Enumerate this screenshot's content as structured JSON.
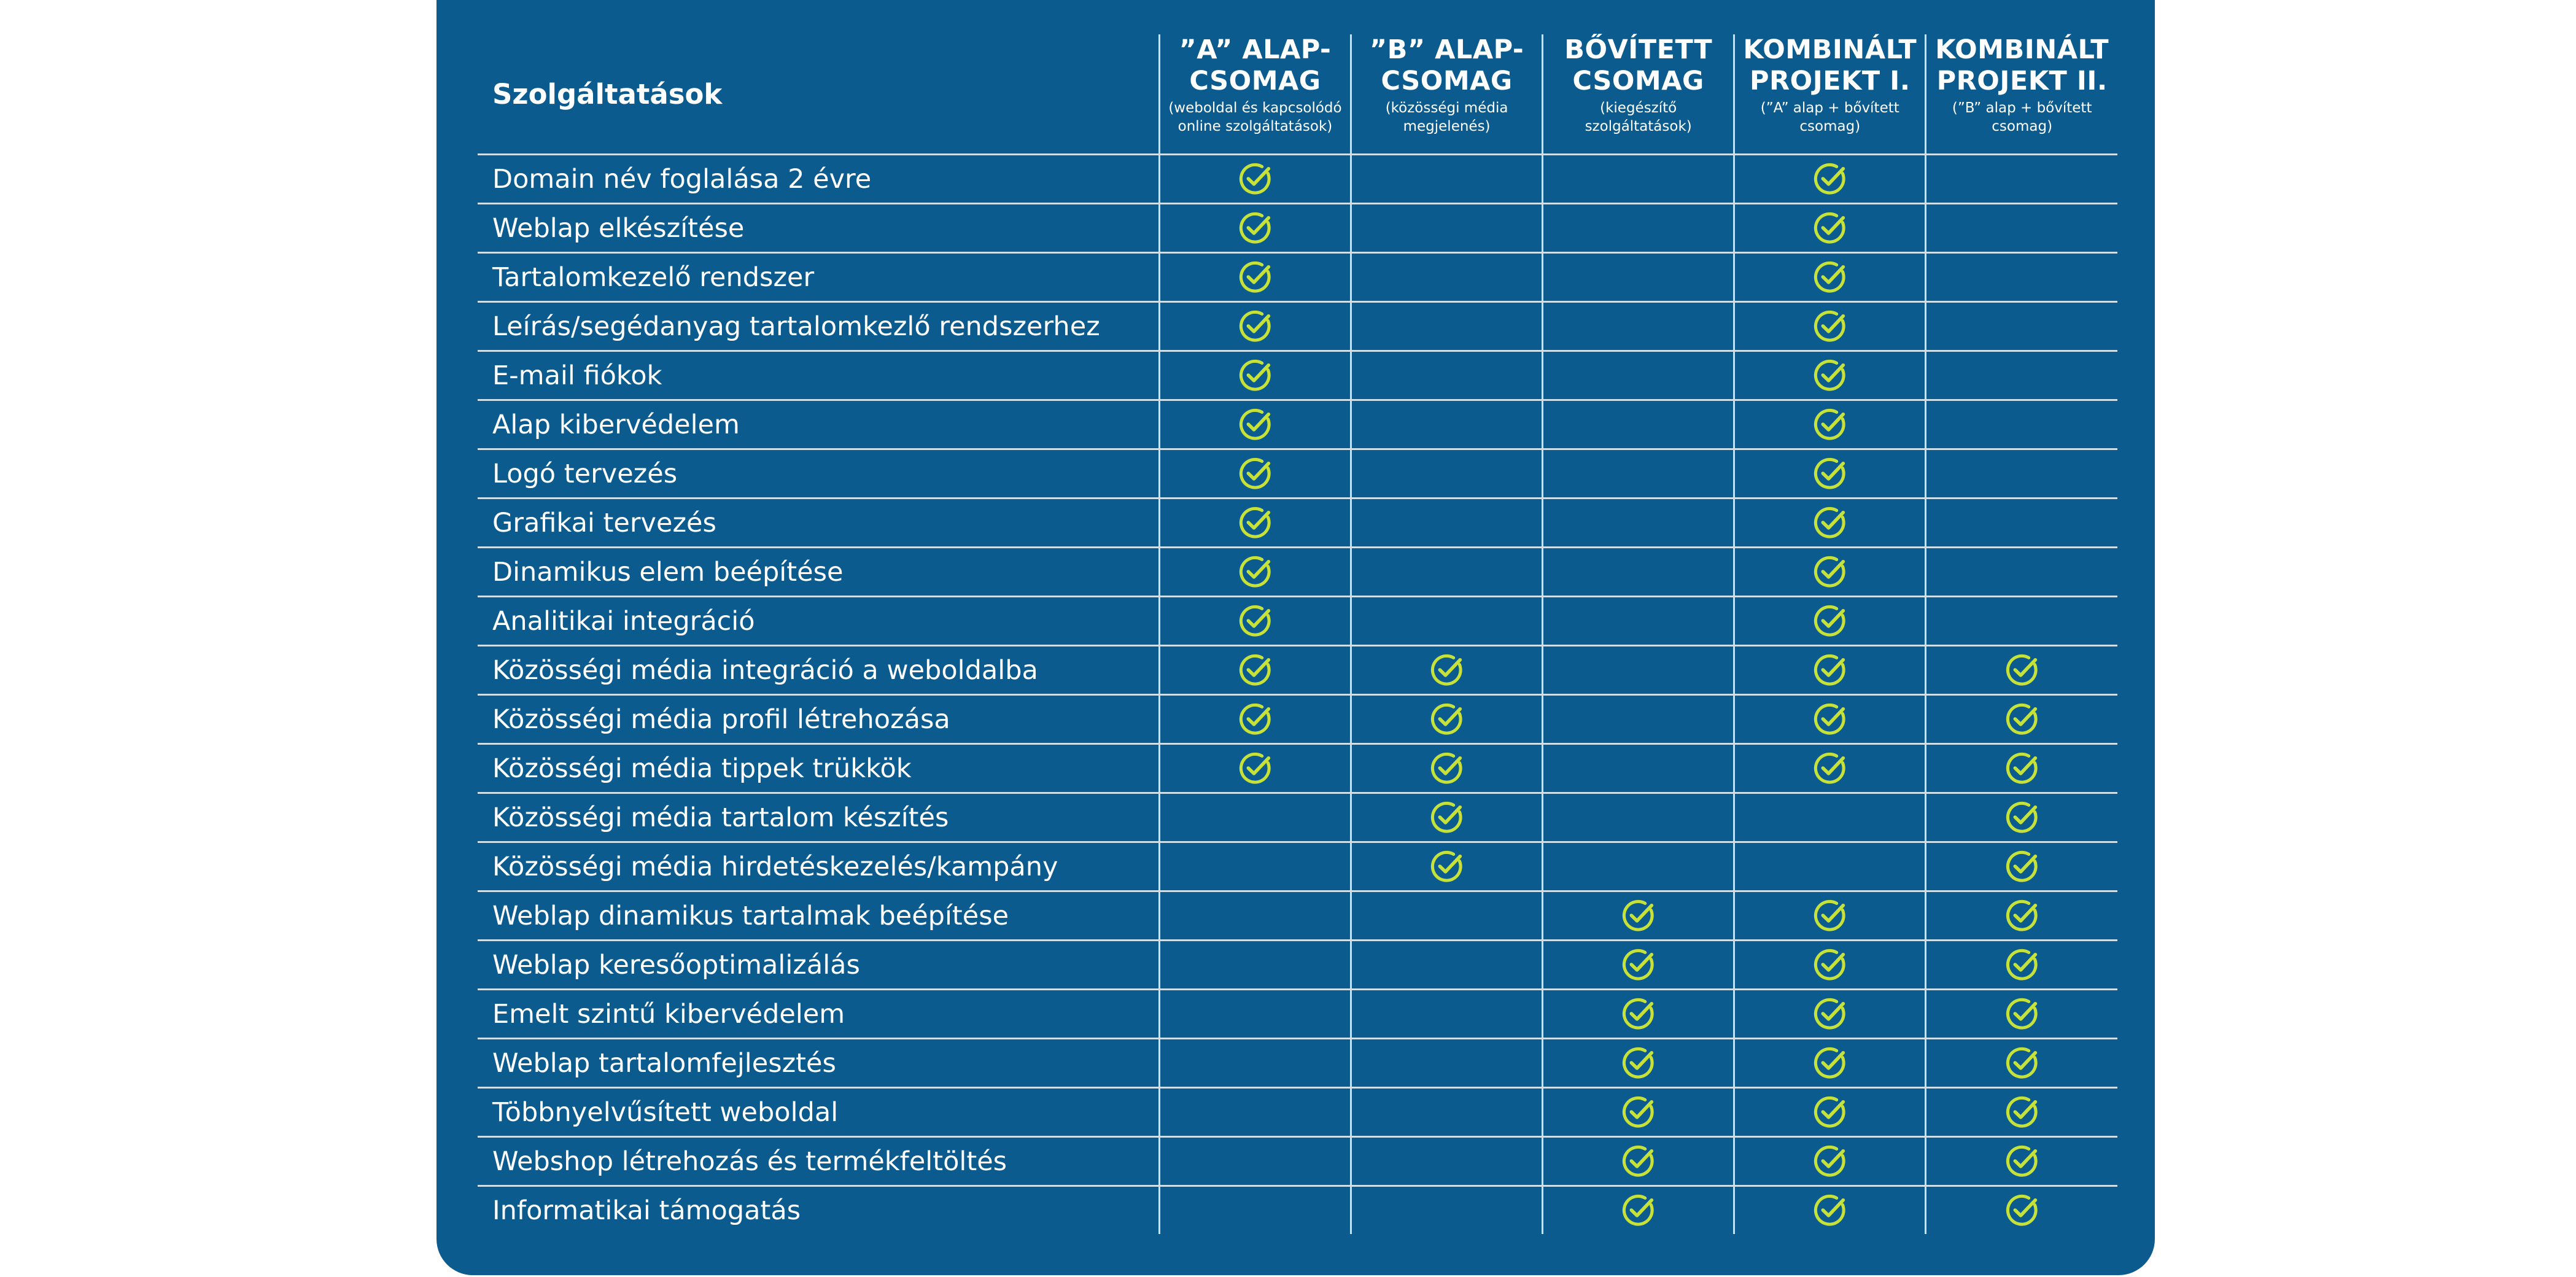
{
  "table": {
    "header_label": "Szolgáltatások",
    "packages": [
      {
        "title": "”A” ALAP-\nCSOMAG",
        "subtitle": "(weboldal és kapcsolódó\nonline szolgáltatások)"
      },
      {
        "title": "”B” ALAP-\nCSOMAG",
        "subtitle": "(közösségi média\nmegjelenés)"
      },
      {
        "title": "BŐVÍTETT\nCSOMAG",
        "subtitle": "(kiegészítő\nszolgáltatások)"
      },
      {
        "title": "KOMBINÁLT\nPROJEKT I.",
        "subtitle": "(”A” alap + bővített\ncsomag)"
      },
      {
        "title": "KOMBINÁLT\nPROJEKT II.",
        "subtitle": "(”B” alap + bővített\ncsomag)"
      }
    ],
    "rows": [
      {
        "service": "Domain név foglalása 2 évre",
        "included": [
          true,
          false,
          false,
          true,
          false
        ]
      },
      {
        "service": "Weblap elkészítése",
        "included": [
          true,
          false,
          false,
          true,
          false
        ]
      },
      {
        "service": "Tartalomkezelő rendszer",
        "included": [
          true,
          false,
          false,
          true,
          false
        ]
      },
      {
        "service": "Leírás/segédanyag tartalomkezlő rendszerhez",
        "included": [
          true,
          false,
          false,
          true,
          false
        ]
      },
      {
        "service": "E-mail fiókok",
        "included": [
          true,
          false,
          false,
          true,
          false
        ]
      },
      {
        "service": "Alap kibervédelem",
        "included": [
          true,
          false,
          false,
          true,
          false
        ]
      },
      {
        "service": "Logó tervezés",
        "included": [
          true,
          false,
          false,
          true,
          false
        ]
      },
      {
        "service": "Grafikai tervezés",
        "included": [
          true,
          false,
          false,
          true,
          false
        ]
      },
      {
        "service": "Dinamikus elem beépítése",
        "included": [
          true,
          false,
          false,
          true,
          false
        ]
      },
      {
        "service": "Analitikai integráció",
        "included": [
          true,
          false,
          false,
          true,
          false
        ]
      },
      {
        "service": "Közösségi média integráció a weboldalba",
        "included": [
          true,
          true,
          false,
          true,
          true
        ]
      },
      {
        "service": "Közösségi média profil létrehozása",
        "included": [
          true,
          true,
          false,
          true,
          true
        ]
      },
      {
        "service": "Közösségi média tippek trükkök",
        "included": [
          true,
          true,
          false,
          true,
          true
        ]
      },
      {
        "service": "Közösségi média tartalom készítés",
        "included": [
          false,
          true,
          false,
          false,
          true
        ]
      },
      {
        "service": "Közösségi média hirdetéskezelés/kampány",
        "included": [
          false,
          true,
          false,
          false,
          true
        ]
      },
      {
        "service": "Weblap dinamikus tartalmak beépítése",
        "included": [
          false,
          false,
          true,
          true,
          true
        ]
      },
      {
        "service": "Weblap keresőoptimalizálás",
        "included": [
          false,
          false,
          true,
          true,
          true
        ]
      },
      {
        "service": "Emelt szintű kibervédelem",
        "included": [
          false,
          false,
          true,
          true,
          true
        ]
      },
      {
        "service": "Weblap tartalomfejlesztés",
        "included": [
          false,
          false,
          true,
          true,
          true
        ]
      },
      {
        "service": "Többnyelvűsített weboldal",
        "included": [
          false,
          false,
          true,
          true,
          true
        ]
      },
      {
        "service": "Webshop létrehozás és termékfeltöltés",
        "included": [
          false,
          false,
          true,
          true,
          true
        ]
      },
      {
        "service": "Informatikai támogatás",
        "included": [
          false,
          false,
          true,
          true,
          true
        ]
      }
    ]
  },
  "icons": {
    "included_mark": "check-circle-icon"
  },
  "colors": {
    "panel_background": "#0b5b8e",
    "text": "#ffffff",
    "rule_lines": "#cfe0ec",
    "check_mark": "#c6e23a"
  }
}
